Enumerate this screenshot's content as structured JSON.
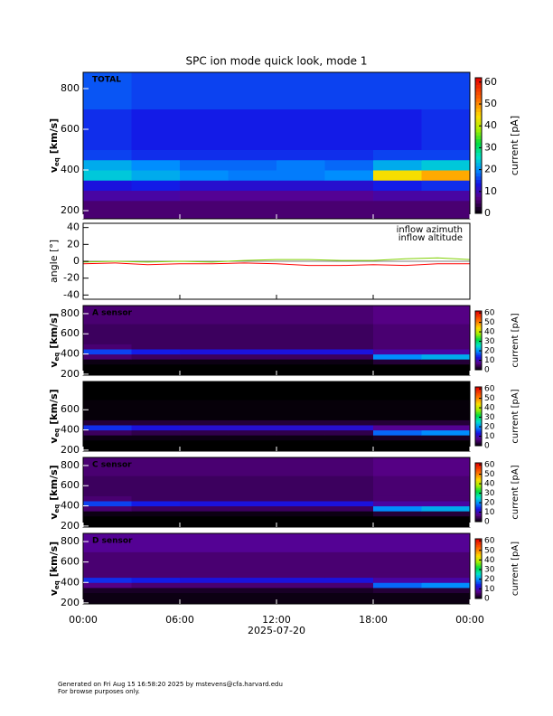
{
  "chart_data": [
    {
      "type": "heatmap",
      "title": "SPC ion mode quick look, mode 1",
      "label": "TOTAL",
      "ylabel": {
        "main": "v",
        "sub": "eq",
        "unit": "[km/s]"
      },
      "ylim": [
        160,
        880
      ],
      "yticks": [
        200,
        400,
        600,
        800
      ],
      "xbins": [
        0,
        3,
        6,
        9,
        12,
        15,
        18,
        21,
        24
      ],
      "ybins": [
        150,
        250,
        300,
        350,
        400,
        450,
        500,
        700,
        900
      ],
      "values": [
        [
          6,
          6,
          6,
          6,
          6,
          6,
          6,
          6
        ],
        [
          9,
          9,
          8,
          8,
          8,
          8,
          9,
          9
        ],
        [
          13,
          14,
          12,
          12,
          12,
          12,
          14,
          15
        ],
        [
          24,
          22,
          20,
          19,
          19,
          20,
          44,
          48
        ],
        [
          22,
          20,
          18,
          18,
          19,
          18,
          22,
          24
        ],
        [
          16,
          15,
          15,
          15,
          15,
          15,
          16,
          16
        ],
        [
          15,
          14,
          14,
          14,
          14,
          14,
          14,
          15
        ],
        [
          17,
          16,
          16,
          16,
          16,
          16,
          16,
          16
        ]
      ],
      "zlim": [
        0,
        62
      ],
      "zticks": [
        0,
        10,
        20,
        30,
        40,
        50,
        60
      ],
      "zlabel": "current [pA]"
    },
    {
      "type": "line",
      "ylabel": "angle [°]",
      "ylim": [
        -45,
        45
      ],
      "yticks": [
        -40,
        -20,
        0,
        20,
        40
      ],
      "x": [
        0,
        2,
        4,
        6,
        8,
        10,
        12,
        14,
        16,
        18,
        20,
        22,
        24
      ],
      "series": [
        {
          "name": "inflow azimuth",
          "color": "#ff0000",
          "values": [
            -3,
            -2,
            -4,
            -3,
            -3,
            -2,
            -3,
            -5,
            -5,
            -4,
            -5,
            -3,
            -3
          ]
        },
        {
          "name": "inflow altitude",
          "color": "#7fd000",
          "values": [
            -1,
            0,
            -1,
            0,
            -1,
            1,
            2,
            2,
            1,
            1,
            3,
            4,
            2
          ]
        }
      ]
    },
    {
      "type": "heatmap",
      "label": "A sensor",
      "ylabel": {
        "main": "v",
        "sub": "eq",
        "unit": "[km/s]"
      },
      "ylim": [
        190,
        880
      ],
      "yticks": [
        200,
        400,
        600,
        800
      ],
      "xbins": [
        0,
        3,
        6,
        9,
        12,
        15,
        18,
        21,
        24
      ],
      "ybins": [
        150,
        250,
        300,
        350,
        400,
        450,
        500,
        700,
        900
      ],
      "values": [
        [
          0,
          0,
          0,
          0,
          0,
          0,
          0,
          0
        ],
        [
          0,
          0,
          0,
          0,
          0,
          0,
          0,
          0
        ],
        [
          1,
          1,
          1,
          1,
          1,
          1,
          3,
          3
        ],
        [
          6,
          5,
          5,
          5,
          5,
          5,
          20,
          22
        ],
        [
          16,
          14,
          13,
          13,
          13,
          13,
          9,
          9
        ],
        [
          6,
          5,
          5,
          5,
          5,
          5,
          6,
          6
        ],
        [
          5,
          5,
          5,
          5,
          5,
          5,
          6,
          6
        ],
        [
          6,
          6,
          6,
          6,
          6,
          6,
          7,
          7
        ]
      ],
      "zlim": [
        0,
        62
      ],
      "zticks": [
        0,
        10,
        20,
        30,
        40,
        50,
        60
      ],
      "zlabel": "current [pA]"
    },
    {
      "type": "heatmap",
      "ylabel": {
        "main": "v",
        "sub": "eq",
        "unit": "[km/s]"
      },
      "ylim": [
        190,
        880
      ],
      "yticks": [
        200,
        400,
        600
      ],
      "xbins": [
        0,
        3,
        6,
        9,
        12,
        15,
        18,
        21,
        24
      ],
      "ybins": [
        150,
        250,
        300,
        350,
        400,
        450,
        500,
        700,
        900
      ],
      "values": [
        [
          0,
          0,
          0,
          0,
          0,
          0,
          0,
          0
        ],
        [
          0,
          0,
          0,
          0,
          0,
          0,
          0,
          0
        ],
        [
          1,
          1,
          1,
          1,
          1,
          1,
          2,
          2
        ],
        [
          5,
          4,
          4,
          4,
          4,
          4,
          18,
          20
        ],
        [
          15,
          13,
          12,
          12,
          12,
          12,
          8,
          8
        ],
        [
          3,
          3,
          3,
          3,
          3,
          3,
          3,
          3
        ],
        [
          0.5,
          0.5,
          0.5,
          0.5,
          0.5,
          0.5,
          0.5,
          0.5
        ],
        [
          0,
          0,
          0,
          0,
          0,
          0,
          0,
          0
        ]
      ],
      "zlim": [
        0,
        62
      ],
      "zticks": [
        0,
        10,
        20,
        30,
        40,
        50,
        60
      ],
      "zlabel": "current [pA]"
    },
    {
      "type": "heatmap",
      "label": "C sensor",
      "ylabel": {
        "main": "v",
        "sub": "eq",
        "unit": "[km/s]"
      },
      "ylim": [
        190,
        880
      ],
      "yticks": [
        200,
        400,
        600,
        800
      ],
      "xbins": [
        0,
        3,
        6,
        9,
        12,
        15,
        18,
        21,
        24
      ],
      "ybins": [
        150,
        250,
        300,
        350,
        400,
        450,
        500,
        700,
        900
      ],
      "values": [
        [
          0,
          0,
          0,
          0,
          0,
          0,
          0,
          0
        ],
        [
          0,
          0,
          0,
          0,
          0,
          0,
          0,
          0
        ],
        [
          1,
          1,
          1,
          1,
          1,
          1,
          3,
          3
        ],
        [
          6,
          5,
          5,
          5,
          5,
          5,
          20,
          22
        ],
        [
          16,
          14,
          13,
          13,
          13,
          13,
          9,
          9
        ],
        [
          6,
          5,
          5,
          5,
          5,
          5,
          6,
          6
        ],
        [
          5,
          5,
          5,
          5,
          5,
          5,
          6,
          6
        ],
        [
          6,
          6,
          6,
          6,
          6,
          6,
          7,
          7
        ]
      ],
      "zlim": [
        0,
        62
      ],
      "zticks": [
        0,
        10,
        20,
        30,
        40,
        50,
        60
      ],
      "zlabel": "current [pA]"
    },
    {
      "type": "heatmap",
      "label": "D sensor",
      "ylabel": {
        "main": "v",
        "sub": "eq",
        "unit": "[km/s]"
      },
      "ylim": [
        190,
        880
      ],
      "yticks": [
        200,
        400,
        600,
        800
      ],
      "xbins": [
        0,
        3,
        6,
        9,
        12,
        15,
        18,
        21,
        24
      ],
      "ybins": [
        150,
        250,
        300,
        350,
        400,
        450,
        500,
        700,
        900
      ],
      "values": [
        [
          1,
          1,
          1,
          1,
          1,
          1,
          1,
          1
        ],
        [
          1,
          1,
          1,
          1,
          1,
          1,
          1,
          1
        ],
        [
          2,
          2,
          2,
          2,
          2,
          2,
          3,
          3
        ],
        [
          7,
          6,
          6,
          6,
          6,
          6,
          18,
          20
        ],
        [
          15,
          14,
          13,
          13,
          13,
          13,
          9,
          9
        ],
        [
          6,
          6,
          6,
          6,
          6,
          6,
          6,
          6
        ],
        [
          6,
          6,
          6,
          6,
          6,
          6,
          6,
          6
        ],
        [
          8,
          8,
          8,
          8,
          8,
          8,
          8,
          8
        ]
      ],
      "zlim": [
        0,
        62
      ],
      "zticks": [
        0,
        10,
        20,
        30,
        40,
        50,
        60
      ],
      "zlabel": "current [pA]",
      "xlim": [
        0,
        24
      ],
      "xticks": [
        {
          "value": 0,
          "label": "00:00"
        },
        {
          "value": 6,
          "label": "06:00"
        },
        {
          "value": 12,
          "label": "12:00"
        },
        {
          "value": 18,
          "label": "18:00"
        },
        {
          "value": 24,
          "label": "00:00"
        }
      ],
      "xlabel": "2025-07-20"
    }
  ],
  "footer": {
    "line1": "Generated on Fri Aug 15 16:58:20 2025 by mstevens@cfa.harvard.edu",
    "line2": "For browse purposes only."
  }
}
